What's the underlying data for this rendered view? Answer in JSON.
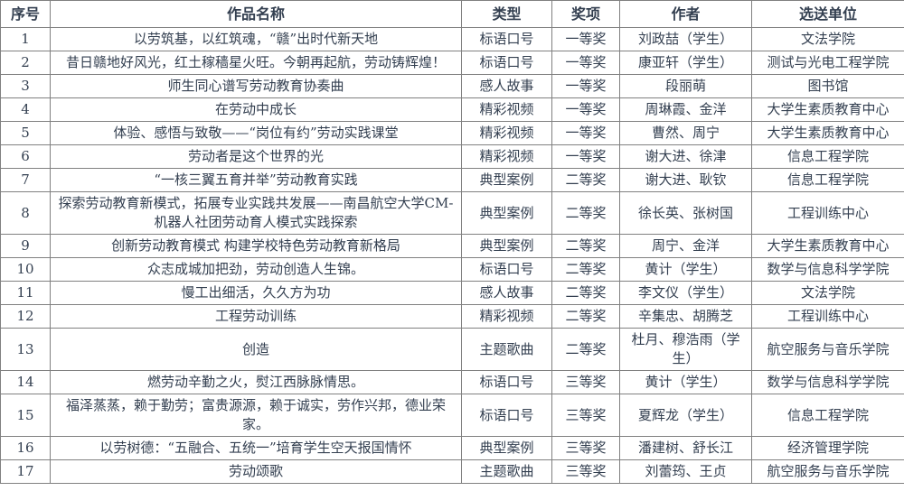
{
  "colors": {
    "text": "#333F50",
    "border": "#808080",
    "background": "#ffffff"
  },
  "table": {
    "columns": [
      {
        "key": "no",
        "label": "序号"
      },
      {
        "key": "title",
        "label": "作品名称"
      },
      {
        "key": "type",
        "label": "类型"
      },
      {
        "key": "award",
        "label": "奖项"
      },
      {
        "key": "author",
        "label": "作者"
      },
      {
        "key": "unit",
        "label": "选送单位"
      }
    ],
    "rows": [
      {
        "no": "1",
        "title": "以劳筑基，以红筑魂，“赣”出时代新天地",
        "type": "标语口号",
        "award": "一等奖",
        "author": "刘政喆（学生）",
        "unit": "文法学院"
      },
      {
        "no": "2",
        "title": "昔日赣地好风光，红土稼穑星火旺。今朝再起航，劳动铸辉煌！",
        "type": "标语口号",
        "award": "一等奖",
        "author": "康亚轩（学生）",
        "unit": "测试与光电工程学院"
      },
      {
        "no": "3",
        "title": "师生同心谱写劳动教育协奏曲",
        "type": "感人故事",
        "award": "一等奖",
        "author": "段丽萌",
        "unit": "图书馆"
      },
      {
        "no": "4",
        "title": "在劳动中成长",
        "type": "精彩视频",
        "award": "一等奖",
        "author": "周琳霞、金洋",
        "unit": "大学生素质教育中心"
      },
      {
        "no": "5",
        "title": "体验、感悟与致敬——“岗位有约”劳动实践课堂",
        "type": "精彩视频",
        "award": "一等奖",
        "author": "曹然、周宁",
        "unit": "大学生素质教育中心"
      },
      {
        "no": "6",
        "title": "劳动者是这个世界的光",
        "type": "精彩视频",
        "award": "一等奖",
        "author": "谢大进、徐津",
        "unit": "信息工程学院"
      },
      {
        "no": "7",
        "title": "“一核三翼五育并举”劳动教育实践",
        "type": "典型案例",
        "award": "二等奖",
        "author": "谢大进、耿钦",
        "unit": "信息工程学院"
      },
      {
        "no": "8",
        "title": "探索劳动教育新模式，拓展专业实践共发展——南昌航空大学CM-机器人社团劳动育人模式实践探索",
        "type": "典型案例",
        "award": "二等奖",
        "author": "徐长英、张树国",
        "unit": "工程训练中心"
      },
      {
        "no": "9",
        "title": "创新劳动教育模式 构建学校特色劳动教育新格局",
        "type": "典型案例",
        "award": "二等奖",
        "author": "周宁、金洋",
        "unit": "大学生素质教育中心"
      },
      {
        "no": "10",
        "title": "众志成城加把劲，劳动创造人生锦。",
        "type": "标语口号",
        "award": "二等奖",
        "author": "黄计（学生）",
        "unit": "数学与信息科学学院"
      },
      {
        "no": "11",
        "title": "慢工出细活，久久方为功",
        "type": "感人故事",
        "award": "二等奖",
        "author": "李文仪（学生）",
        "unit": "文法学院"
      },
      {
        "no": "12",
        "title": "工程劳动训练",
        "type": "精彩视频",
        "award": "二等奖",
        "author": "辛集忠、胡腾芝",
        "unit": "工程训练中心"
      },
      {
        "no": "13",
        "title": "创造",
        "type": "主题歌曲",
        "award": "二等奖",
        "author": "杜月、穆浩雨（学生）",
        "unit": "航空服务与音乐学院"
      },
      {
        "no": "14",
        "title": "燃劳动辛勤之火，熨江西脉脉情思。",
        "type": "标语口号",
        "award": "三等奖",
        "author": "黄计（学生）",
        "unit": "数学与信息科学学院"
      },
      {
        "no": "15",
        "title": "福泽蒸蒸，赖于勤劳；富贵源源，赖于诚实，劳作兴邦，德业荣家。",
        "type": "标语口号",
        "award": "三等奖",
        "author": "夏辉龙（学生）",
        "unit": "信息工程学院"
      },
      {
        "no": "16",
        "title": "以劳树德：“五融合、五统一”培育学生空天报国情怀",
        "type": "典型案例",
        "award": "三等奖",
        "author": "潘建树、舒长江",
        "unit": "经济管理学院"
      },
      {
        "no": "17",
        "title": "劳动颂歌",
        "type": "主题歌曲",
        "award": "三等奖",
        "author": "刘蕾筠、王贞",
        "unit": "航空服务与音乐学院"
      }
    ]
  }
}
